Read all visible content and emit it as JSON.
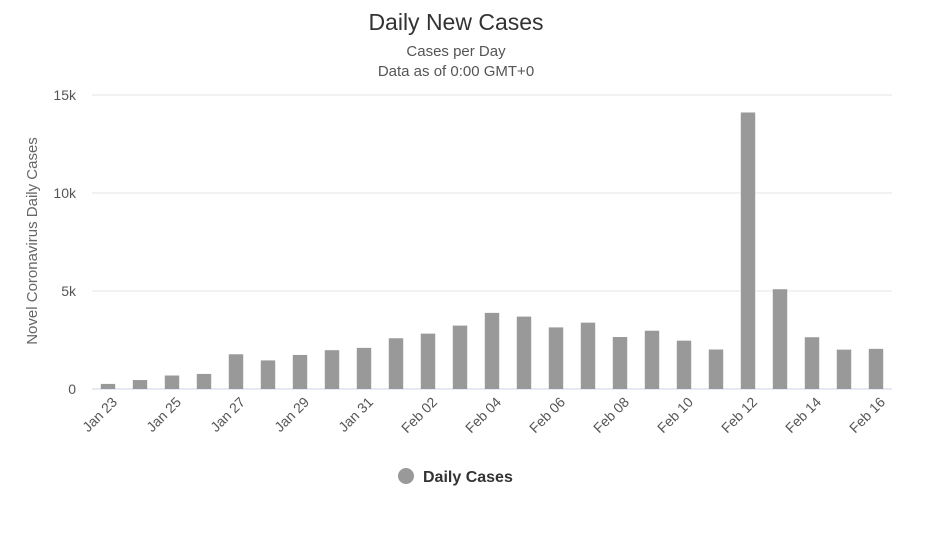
{
  "chart_data": {
    "type": "bar",
    "title": "Daily New Cases",
    "subtitle_lines": [
      "Cases per Day",
      "Data as of 0:00 GMT+0"
    ],
    "ylabel": "Novel Coronavirus Daily Cases",
    "xlabel": "",
    "ylim": [
      0,
      15000
    ],
    "yticks": [
      0,
      5000,
      10000,
      15000
    ],
    "ytick_labels": [
      "0",
      "5k",
      "10k",
      "15k"
    ],
    "grid": true,
    "legend_position": "bottom-center",
    "categories": [
      "Jan 23",
      "Jan 24",
      "Jan 25",
      "Jan 26",
      "Jan 27",
      "Jan 28",
      "Jan 29",
      "Jan 30",
      "Jan 31",
      "Feb 01",
      "Feb 02",
      "Feb 03",
      "Feb 04",
      "Feb 05",
      "Feb 06",
      "Feb 07",
      "Feb 08",
      "Feb 09",
      "Feb 10",
      "Feb 11",
      "Feb 12",
      "Feb 13",
      "Feb 14",
      "Feb 15",
      "Feb 16"
    ],
    "xtick_labels": [
      "Jan 23",
      "Jan 25",
      "Jan 27",
      "Jan 29",
      "Jan 31",
      "Feb 02",
      "Feb 04",
      "Feb 06",
      "Feb 08",
      "Feb 10",
      "Feb 12",
      "Feb 14",
      "Feb 16"
    ],
    "series": [
      {
        "name": "Daily Cases",
        "color": "#999999",
        "values": [
          259,
          457,
          688,
          769,
          1771,
          1459,
          1737,
          1981,
          2099,
          2589,
          2825,
          3235,
          3884,
          3694,
          3143,
          3385,
          2652,
          2973,
          2467,
          2015,
          14108,
          5090,
          2641,
          2008,
          2048
        ]
      }
    ]
  }
}
